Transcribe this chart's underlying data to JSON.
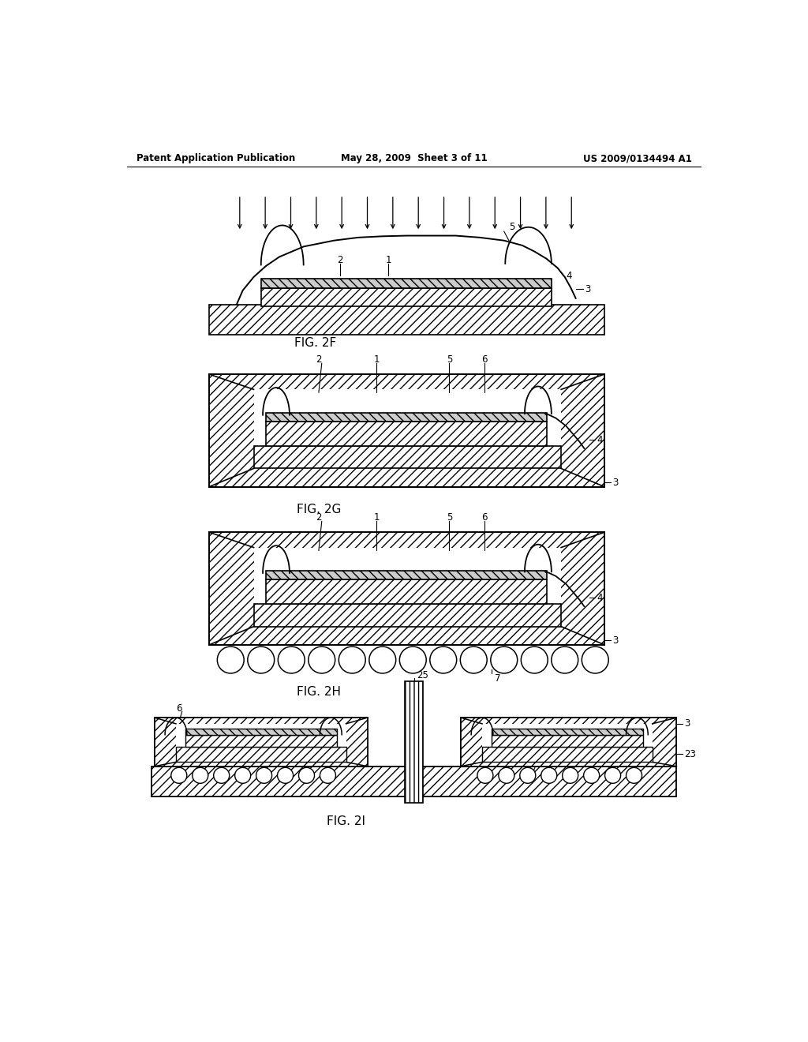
{
  "header_left": "Patent Application Publication",
  "header_mid": "May 28, 2009  Sheet 3 of 11",
  "header_right": "US 2009/0134494 A1",
  "bg_color": "#ffffff"
}
